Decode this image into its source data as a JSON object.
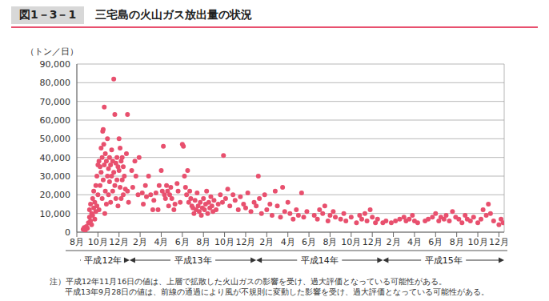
{
  "chart_data": {
    "type": "scatter",
    "figure_label": "図1－3－1",
    "title": "三宅島の火山ガス放出量の状況",
    "y_label": "（トン／日）",
    "color": "#e8506e",
    "marker": "circle",
    "grid": true,
    "xlim": [
      8,
      48.5
    ],
    "xticks": [
      {
        "value": 8,
        "label": "8月"
      },
      {
        "value": 10,
        "label": "10月"
      },
      {
        "value": 12,
        "label": "12月"
      },
      {
        "value": 14,
        "label": "2月"
      },
      {
        "value": 16,
        "label": "4月"
      },
      {
        "value": 18,
        "label": "6月"
      },
      {
        "value": 20,
        "label": "8月"
      },
      {
        "value": 22,
        "label": "10月"
      },
      {
        "value": 24,
        "label": "12月"
      },
      {
        "value": 26,
        "label": "2月"
      },
      {
        "value": 28,
        "label": "4月"
      },
      {
        "value": 30,
        "label": "6月"
      },
      {
        "value": 32,
        "label": "8月"
      },
      {
        "value": 34,
        "label": "10月"
      },
      {
        "value": 36,
        "label": "12月"
      },
      {
        "value": 38,
        "label": "2月"
      },
      {
        "value": 40,
        "label": "4月"
      },
      {
        "value": 42,
        "label": "6月"
      },
      {
        "value": 44,
        "label": "8月"
      },
      {
        "value": 46,
        "label": "10月"
      },
      {
        "value": 48,
        "label": "12月"
      }
    ],
    "ylim": [
      0,
      90000
    ],
    "yticks": [
      0,
      {
        "value": 10000,
        "label": "10,000"
      },
      {
        "value": 20000,
        "label": "20,000"
      },
      {
        "value": 30000,
        "label": "30,000"
      },
      {
        "value": 40000,
        "label": "40,000"
      },
      {
        "value": 50000,
        "label": "50,000"
      },
      {
        "value": 60000,
        "label": "60,000"
      },
      {
        "value": 70000,
        "label": "70,000"
      },
      {
        "value": 80000,
        "label": "80,000"
      },
      {
        "value": 90000,
        "label": "90,000"
      }
    ],
    "periods": [
      {
        "label": "平成12年",
        "from": 8,
        "to": 13
      },
      {
        "label": "平成13年",
        "from": 13,
        "to": 25
      },
      {
        "label": "平成14年",
        "from": 25,
        "to": 37
      },
      {
        "label": "平成15年",
        "from": 37,
        "to": 48.5
      }
    ],
    "notes": [
      "注）平成12年11月16日の値は、上層で拡散した火山ガスの影響を受け、過大評価となっている可能性がある。",
      "平成13年9月28日の値は、前線の通過により風が不規則に変動した影響を受け、過大評価となっている可能性がある。"
    ],
    "x": [
      8.6,
      8.7,
      8.8,
      8.9,
      9,
      9.1,
      9.2,
      9.2,
      9.3,
      9.3,
      9.4,
      9.4,
      9.5,
      9.5,
      9.6,
      9.6,
      9.7,
      9.7,
      9.8,
      9.8,
      9.9,
      9.9,
      10,
      10,
      10.1,
      10.1,
      10.2,
      10.2,
      10.3,
      10.3,
      10.4,
      10.4,
      10.5,
      10.5,
      10.6,
      10.6,
      10.7,
      10.7,
      10.8,
      10.8,
      10.9,
      10.9,
      10.45,
      10.55,
      10.65,
      11,
      11,
      11.1,
      11.1,
      11.2,
      11.2,
      11.3,
      11.3,
      11.4,
      11.4,
      11.5,
      11.5,
      11.6,
      11.6,
      11.7,
      11.7,
      11.8,
      11.8,
      11.9,
      11.9,
      12,
      12,
      12.1,
      12.1,
      12.2,
      12.2,
      12.3,
      12.3,
      12.4,
      12.4,
      12.5,
      12.6,
      12.7,
      12.8,
      12.8,
      12.9,
      13.2,
      13.3,
      13.5,
      13.6,
      13.8,
      13.9,
      14.2,
      14.3,
      14.5,
      14.6,
      14.8,
      15,
      15.2,
      15.3,
      15.5,
      15.7,
      15.8,
      16,
      16.1,
      16.2,
      16.3,
      16.4,
      16.5,
      16.6,
      16.7,
      16.8,
      16.9,
      17,
      17.2,
      17.3,
      17.5,
      17.6,
      17.8,
      18,
      18.1,
      18.2,
      18.3,
      18.4,
      18.5,
      18.6,
      18.7,
      18.8,
      18.9,
      19,
      19.1,
      19.2,
      19.3,
      19.4,
      19.5,
      19.6,
      19.7,
      19.8,
      19.9,
      20,
      20.1,
      20.2,
      20.3,
      20.4,
      20.5,
      20.6,
      20.7,
      20.8,
      20.9,
      21,
      21.2,
      21.4,
      21.6,
      21.8,
      21.9,
      22.1,
      22.3,
      22.5,
      22.8,
      23,
      23.3,
      23.5,
      23.8,
      24,
      24.2,
      24.5,
      24.8,
      25,
      25.2,
      25.3,
      25.5,
      25.8,
      26,
      26.3,
      26.5,
      26.8,
      27,
      27.3,
      27.5,
      27.7,
      28,
      28.2,
      28.5,
      28.8,
      29,
      29.3,
      29.5,
      29.8,
      30.5,
      30.8,
      31,
      31.3,
      31.5,
      31.8,
      32,
      32.3,
      32.5,
      33,
      33.3,
      33.5,
      34,
      34.5,
      34.8,
      35,
      35.3,
      35.5,
      35.8,
      36,
      36.3,
      36.5,
      37,
      37.3,
      37.8,
      38.2,
      38.6,
      39,
      39.2,
      39.5,
      39.8,
      40,
      40.3,
      41,
      41.3,
      41.7,
      42,
      42.3,
      42.5,
      42.8,
      43,
      43.3,
      43.6,
      43.9,
      44.2,
      44.5,
      44.8,
      45,
      45.3,
      45.6,
      46,
      46.3,
      46.5,
      46.8,
      47,
      47.2,
      47.5,
      48,
      48.2,
      48.4
    ],
    "values": [
      1500,
      2500,
      1000,
      3000,
      2000,
      5000,
      8000,
      12000,
      6000,
      15000,
      10000,
      4000,
      18000,
      9000,
      13000,
      22000,
      7000,
      16000,
      25000,
      11000,
      30000,
      14000,
      36000,
      20000,
      38000,
      12000,
      35000,
      25000,
      45000,
      32000,
      40000,
      18000,
      55000,
      28000,
      67000,
      36000,
      42000,
      22000,
      38000,
      15000,
      50000,
      30000,
      54000,
      47000,
      10000,
      34000,
      20000,
      40000,
      27000,
      36000,
      16000,
      44000,
      30000,
      38000,
      22000,
      82000,
      32000,
      63000,
      25000,
      37000,
      18000,
      40000,
      28000,
      35000,
      14000,
      50000,
      33000,
      45000,
      24000,
      38000,
      18000,
      40000,
      28000,
      35000,
      20000,
      30000,
      23000,
      42000,
      63000,
      22000,
      16000,
      33000,
      24000,
      38000,
      30000,
      20000,
      40000,
      21000,
      15000,
      25000,
      19000,
      30000,
      20000,
      12000,
      17000,
      21000,
      12000,
      25000,
      33000,
      22000,
      46000,
      20000,
      18000,
      25000,
      22000,
      14000,
      20000,
      24000,
      18000,
      12000,
      15000,
      26000,
      22000,
      16000,
      47000,
      46000,
      30000,
      24000,
      20000,
      33000,
      16000,
      22000,
      18000,
      14000,
      13000,
      10000,
      17000,
      12000,
      21000,
      14000,
      11000,
      16000,
      9000,
      13000,
      18000,
      12000,
      15000,
      22000,
      10000,
      16000,
      13000,
      19000,
      14000,
      11000,
      17000,
      12000,
      15000,
      20000,
      16000,
      41000,
      18000,
      23000,
      14000,
      20000,
      17000,
      12000,
      19000,
      15000,
      13000,
      21000,
      11000,
      16000,
      14000,
      30000,
      18000,
      10000,
      20000,
      12000,
      15000,
      9000,
      22000,
      14000,
      8000,
      24000,
      11000,
      16000,
      10000,
      7000,
      12000,
      9000,
      21000,
      8000,
      11000,
      9000,
      7000,
      12000,
      10000,
      14000,
      6000,
      9000,
      11000,
      8000,
      7000,
      10000,
      6000,
      8000,
      5000,
      9000,
      7000,
      10000,
      6000,
      12000,
      8000,
      5000,
      7000,
      5000,
      6000,
      5000,
      6000,
      7000,
      8000,
      6000,
      7000,
      9000,
      6000,
      5000,
      6000,
      7000,
      8000,
      10000,
      6000,
      8000,
      7000,
      9000,
      6000,
      11000,
      8000,
      7000,
      5000,
      9000,
      7000,
      6000,
      8000,
      5000,
      7000,
      12000,
      9000,
      15000,
      10000,
      6000,
      4000,
      7000,
      5000
    ]
  }
}
